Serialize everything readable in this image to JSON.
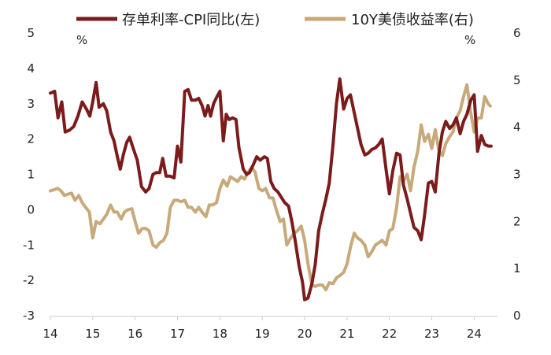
{
  "chart_data": {
    "type": "line",
    "left_unit": "%",
    "right_unit": "%",
    "x_range": [
      2014.0,
      2024.55
    ],
    "x_ticks": [
      {
        "label": "14",
        "value": 2014
      },
      {
        "label": "15",
        "value": 2015
      },
      {
        "label": "16",
        "value": 2016
      },
      {
        "label": "17",
        "value": 2017
      },
      {
        "label": "18",
        "value": 2018
      },
      {
        "label": "19",
        "value": 2019
      },
      {
        "label": "20",
        "value": 2020
      },
      {
        "label": "21",
        "value": 2021
      },
      {
        "label": "22",
        "value": 2022
      },
      {
        "label": "23",
        "value": 2023
      },
      {
        "label": "24",
        "value": 2024
      }
    ],
    "y_left": {
      "range": [
        -3,
        5
      ],
      "ticks": [
        "-3",
        "-2",
        "-1",
        "0",
        "1",
        "2",
        "3",
        "4",
        "5"
      ]
    },
    "y_right": {
      "range": [
        0,
        6
      ],
      "ticks": [
        "0",
        "1",
        "2",
        "3",
        "4",
        "5",
        "6"
      ]
    },
    "grid": false,
    "legend_position": "top",
    "series": [
      {
        "name": "存单利率-CPI同比(左)",
        "axis": "left",
        "color": "#7B1B1B",
        "points": [
          [
            2014.0,
            3.3
          ],
          [
            2014.1,
            3.35
          ],
          [
            2014.18,
            2.6
          ],
          [
            2014.27,
            3.05
          ],
          [
            2014.35,
            2.2
          ],
          [
            2014.45,
            2.25
          ],
          [
            2014.55,
            2.35
          ],
          [
            2014.65,
            2.65
          ],
          [
            2014.75,
            3.05
          ],
          [
            2014.85,
            2.85
          ],
          [
            2014.93,
            2.65
          ],
          [
            2015.0,
            3.05
          ],
          [
            2015.08,
            3.6
          ],
          [
            2015.15,
            2.9
          ],
          [
            2015.25,
            3.0
          ],
          [
            2015.33,
            2.8
          ],
          [
            2015.42,
            2.2
          ],
          [
            2015.5,
            1.95
          ],
          [
            2015.58,
            1.5
          ],
          [
            2015.65,
            1.15
          ],
          [
            2015.72,
            1.55
          ],
          [
            2015.8,
            1.9
          ],
          [
            2015.87,
            2.05
          ],
          [
            2015.95,
            1.75
          ],
          [
            2016.05,
            1.4
          ],
          [
            2016.15,
            0.65
          ],
          [
            2016.25,
            0.5
          ],
          [
            2016.33,
            0.6
          ],
          [
            2016.42,
            1.0
          ],
          [
            2016.5,
            1.05
          ],
          [
            2016.58,
            1.05
          ],
          [
            2016.65,
            1.45
          ],
          [
            2016.73,
            0.95
          ],
          [
            2016.82,
            0.95
          ],
          [
            2016.92,
            0.9
          ],
          [
            2017.0,
            1.8
          ],
          [
            2017.08,
            1.35
          ],
          [
            2017.17,
            3.35
          ],
          [
            2017.25,
            3.4
          ],
          [
            2017.33,
            3.1
          ],
          [
            2017.42,
            3.1
          ],
          [
            2017.5,
            3.15
          ],
          [
            2017.58,
            2.95
          ],
          [
            2017.65,
            2.65
          ],
          [
            2017.72,
            2.95
          ],
          [
            2017.78,
            2.65
          ],
          [
            2017.85,
            3.0
          ],
          [
            2017.93,
            3.2
          ],
          [
            2018.0,
            3.35
          ],
          [
            2018.08,
            1.95
          ],
          [
            2018.15,
            2.7
          ],
          [
            2018.22,
            2.55
          ],
          [
            2018.3,
            2.6
          ],
          [
            2018.38,
            2.55
          ],
          [
            2018.45,
            1.75
          ],
          [
            2018.55,
            1.15
          ],
          [
            2018.63,
            1.0
          ],
          [
            2018.7,
            1.05
          ],
          [
            2018.78,
            1.25
          ],
          [
            2018.87,
            1.5
          ],
          [
            2018.95,
            1.4
          ],
          [
            2019.05,
            1.5
          ],
          [
            2019.12,
            1.45
          ],
          [
            2019.2,
            0.8
          ],
          [
            2019.28,
            0.6
          ],
          [
            2019.37,
            0.5
          ],
          [
            2019.45,
            0.35
          ],
          [
            2019.53,
            0.2
          ],
          [
            2019.62,
            0.1
          ],
          [
            2019.7,
            -0.35
          ],
          [
            2019.78,
            -0.9
          ],
          [
            2019.87,
            -1.6
          ],
          [
            2019.95,
            -2.05
          ],
          [
            2020.0,
            -2.55
          ],
          [
            2020.08,
            -2.5
          ],
          [
            2020.17,
            -2.1
          ],
          [
            2020.25,
            -1.55
          ],
          [
            2020.33,
            -0.6
          ],
          [
            2020.42,
            -0.1
          ],
          [
            2020.5,
            0.3
          ],
          [
            2020.58,
            0.75
          ],
          [
            2020.67,
            1.85
          ],
          [
            2020.75,
            3.0
          ],
          [
            2020.83,
            3.7
          ],
          [
            2020.92,
            2.85
          ],
          [
            2021.0,
            3.15
          ],
          [
            2021.08,
            3.25
          ],
          [
            2021.17,
            2.75
          ],
          [
            2021.25,
            2.3
          ],
          [
            2021.33,
            1.85
          ],
          [
            2021.42,
            1.55
          ],
          [
            2021.5,
            1.6
          ],
          [
            2021.58,
            1.7
          ],
          [
            2021.67,
            1.75
          ],
          [
            2021.75,
            1.85
          ],
          [
            2021.83,
            2.0
          ],
          [
            2021.92,
            1.15
          ],
          [
            2022.0,
            0.45
          ],
          [
            2022.08,
            1.1
          ],
          [
            2022.17,
            1.6
          ],
          [
            2022.25,
            1.55
          ],
          [
            2022.33,
            0.7
          ],
          [
            2022.42,
            0.3
          ],
          [
            2022.5,
            -0.1
          ],
          [
            2022.58,
            -0.5
          ],
          [
            2022.67,
            -0.6
          ],
          [
            2022.75,
            -0.85
          ],
          [
            2022.83,
            -0.15
          ],
          [
            2022.92,
            0.75
          ],
          [
            2023.0,
            0.8
          ],
          [
            2023.08,
            0.5
          ],
          [
            2023.17,
            1.6
          ],
          [
            2023.25,
            2.2
          ],
          [
            2023.33,
            2.5
          ],
          [
            2023.42,
            2.3
          ],
          [
            2023.5,
            2.4
          ],
          [
            2023.58,
            2.6
          ],
          [
            2023.67,
            2.15
          ],
          [
            2023.75,
            2.5
          ],
          [
            2023.83,
            2.7
          ],
          [
            2023.92,
            3.1
          ],
          [
            2024.0,
            3.25
          ],
          [
            2024.08,
            1.65
          ],
          [
            2024.17,
            2.1
          ],
          [
            2024.25,
            1.85
          ],
          [
            2024.33,
            1.8
          ],
          [
            2024.4,
            1.8
          ]
        ]
      },
      {
        "name": "10Y美债收益率(右)",
        "axis": "right",
        "color": "#C8A97A",
        "points": [
          [
            2014.0,
            2.65
          ],
          [
            2014.08,
            2.67
          ],
          [
            2014.17,
            2.7
          ],
          [
            2014.25,
            2.65
          ],
          [
            2014.33,
            2.55
          ],
          [
            2014.42,
            2.58
          ],
          [
            2014.5,
            2.6
          ],
          [
            2014.58,
            2.45
          ],
          [
            2014.67,
            2.55
          ],
          [
            2014.75,
            2.4
          ],
          [
            2014.83,
            2.3
          ],
          [
            2014.92,
            2.2
          ],
          [
            2015.0,
            1.65
          ],
          [
            2015.08,
            2.0
          ],
          [
            2015.17,
            1.95
          ],
          [
            2015.25,
            2.05
          ],
          [
            2015.33,
            2.15
          ],
          [
            2015.42,
            2.35
          ],
          [
            2015.5,
            2.2
          ],
          [
            2015.58,
            2.2
          ],
          [
            2015.67,
            2.05
          ],
          [
            2015.75,
            2.2
          ],
          [
            2015.83,
            2.25
          ],
          [
            2015.92,
            2.27
          ],
          [
            2016.0,
            2.0
          ],
          [
            2016.08,
            1.75
          ],
          [
            2016.17,
            1.85
          ],
          [
            2016.25,
            1.85
          ],
          [
            2016.33,
            1.8
          ],
          [
            2016.42,
            1.5
          ],
          [
            2016.5,
            1.45
          ],
          [
            2016.58,
            1.55
          ],
          [
            2016.67,
            1.6
          ],
          [
            2016.75,
            1.75
          ],
          [
            2016.83,
            2.3
          ],
          [
            2016.92,
            2.45
          ],
          [
            2017.0,
            2.45
          ],
          [
            2017.08,
            2.42
          ],
          [
            2017.17,
            2.45
          ],
          [
            2017.25,
            2.3
          ],
          [
            2017.33,
            2.3
          ],
          [
            2017.42,
            2.2
          ],
          [
            2017.5,
            2.3
          ],
          [
            2017.58,
            2.2
          ],
          [
            2017.67,
            2.1
          ],
          [
            2017.75,
            2.35
          ],
          [
            2017.83,
            2.35
          ],
          [
            2017.92,
            2.4
          ],
          [
            2018.0,
            2.7
          ],
          [
            2018.08,
            2.88
          ],
          [
            2018.17,
            2.75
          ],
          [
            2018.25,
            2.95
          ],
          [
            2018.33,
            2.9
          ],
          [
            2018.42,
            2.85
          ],
          [
            2018.5,
            2.95
          ],
          [
            2018.58,
            2.9
          ],
          [
            2018.67,
            3.05
          ],
          [
            2018.75,
            3.15
          ],
          [
            2018.83,
            3.05
          ],
          [
            2018.92,
            2.7
          ],
          [
            2019.0,
            2.65
          ],
          [
            2019.08,
            2.7
          ],
          [
            2019.17,
            2.5
          ],
          [
            2019.25,
            2.5
          ],
          [
            2019.33,
            2.25
          ],
          [
            2019.42,
            2.0
          ],
          [
            2019.5,
            2.05
          ],
          [
            2019.58,
            1.5
          ],
          [
            2019.67,
            1.65
          ],
          [
            2019.75,
            1.75
          ],
          [
            2019.83,
            1.8
          ],
          [
            2019.92,
            1.9
          ],
          [
            2020.0,
            1.6
          ],
          [
            2020.08,
            1.1
          ],
          [
            2020.17,
            0.65
          ],
          [
            2020.25,
            0.62
          ],
          [
            2020.33,
            0.65
          ],
          [
            2020.42,
            0.65
          ],
          [
            2020.5,
            0.55
          ],
          [
            2020.58,
            0.7
          ],
          [
            2020.67,
            0.68
          ],
          [
            2020.75,
            0.8
          ],
          [
            2020.83,
            0.85
          ],
          [
            2020.92,
            0.92
          ],
          [
            2021.0,
            1.1
          ],
          [
            2021.08,
            1.45
          ],
          [
            2021.17,
            1.75
          ],
          [
            2021.25,
            1.65
          ],
          [
            2021.33,
            1.6
          ],
          [
            2021.42,
            1.5
          ],
          [
            2021.5,
            1.25
          ],
          [
            2021.58,
            1.35
          ],
          [
            2021.67,
            1.5
          ],
          [
            2021.75,
            1.55
          ],
          [
            2021.83,
            1.6
          ],
          [
            2021.92,
            1.5
          ],
          [
            2022.0,
            1.8
          ],
          [
            2022.08,
            1.85
          ],
          [
            2022.17,
            2.3
          ],
          [
            2022.25,
            2.95
          ],
          [
            2022.33,
            2.85
          ],
          [
            2022.42,
            3.0
          ],
          [
            2022.5,
            2.65
          ],
          [
            2022.58,
            3.15
          ],
          [
            2022.67,
            3.5
          ],
          [
            2022.75,
            4.05
          ],
          [
            2022.83,
            3.7
          ],
          [
            2022.92,
            3.85
          ],
          [
            2023.0,
            3.55
          ],
          [
            2023.08,
            3.95
          ],
          [
            2023.17,
            3.5
          ],
          [
            2023.25,
            3.4
          ],
          [
            2023.33,
            3.65
          ],
          [
            2023.42,
            3.8
          ],
          [
            2023.5,
            3.9
          ],
          [
            2023.58,
            4.2
          ],
          [
            2023.67,
            4.35
          ],
          [
            2023.75,
            4.65
          ],
          [
            2023.83,
            4.9
          ],
          [
            2023.92,
            4.3
          ],
          [
            2024.0,
            3.9
          ],
          [
            2024.08,
            4.2
          ],
          [
            2024.17,
            4.2
          ],
          [
            2024.25,
            4.65
          ],
          [
            2024.33,
            4.5
          ],
          [
            2024.38,
            4.45
          ]
        ]
      }
    ]
  }
}
